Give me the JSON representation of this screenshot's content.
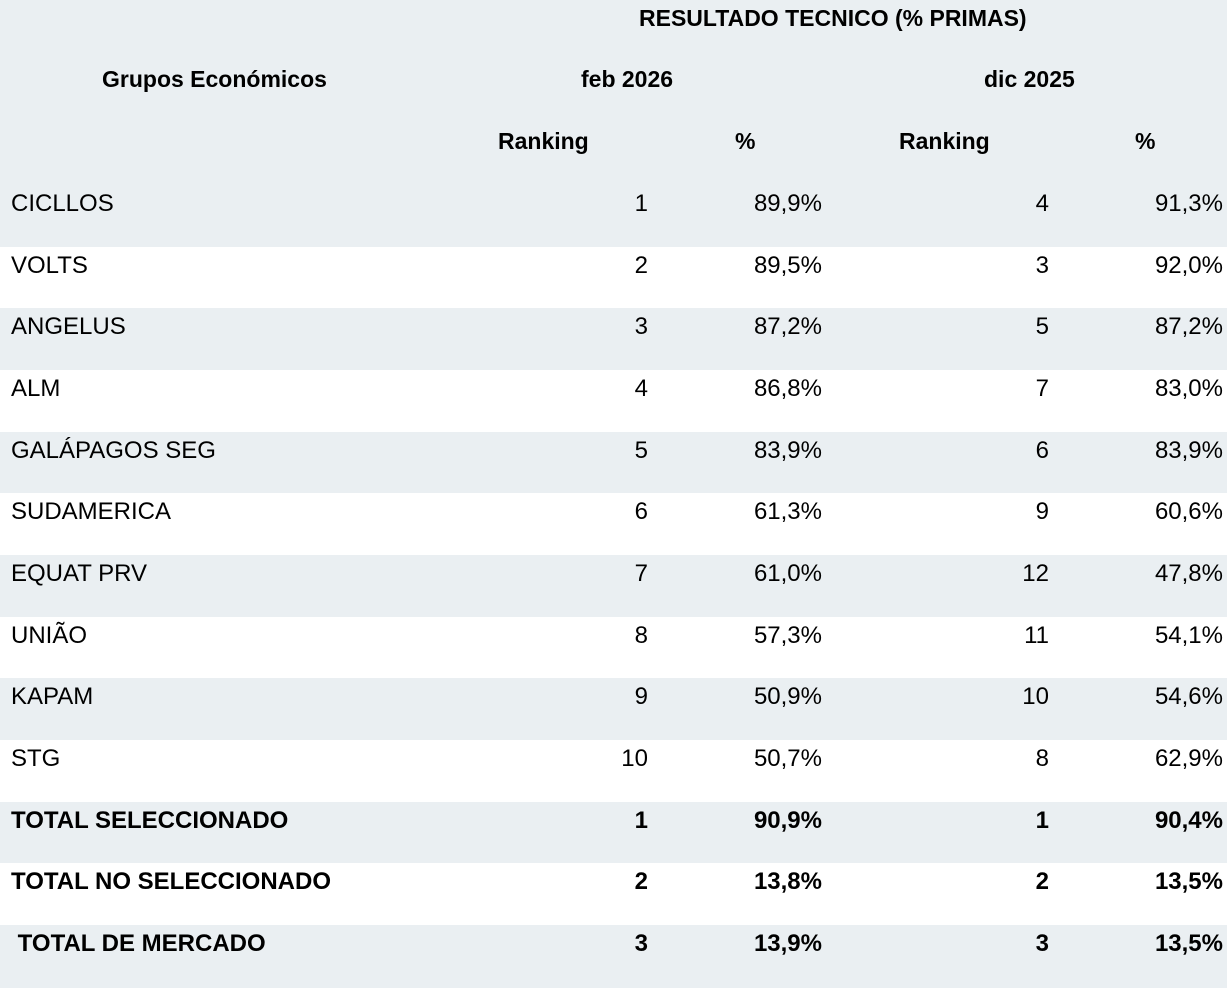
{
  "header": {
    "title": "RESULTADO TECNICO (% PRIMAS)",
    "group_label": "Grupos Económicos",
    "period1": "feb 2026",
    "period2": "dic 2025",
    "ranking1": "Ranking",
    "pct1": "%",
    "ranking2": "Ranking",
    "pct2": "%"
  },
  "rows": [
    {
      "name": "CICLLOS",
      "r1": "1",
      "p1": "89,9%",
      "r2": "4",
      "p2": "91,3%"
    },
    {
      "name": "VOLTS",
      "r1": "2",
      "p1": "89,5%",
      "r2": "3",
      "p2": "92,0%"
    },
    {
      "name": "ANGELUS",
      "r1": "3",
      "p1": "87,2%",
      "r2": "5",
      "p2": "87,2%"
    },
    {
      "name": "ALM",
      "r1": "4",
      "p1": "86,8%",
      "r2": "7",
      "p2": "83,0%"
    },
    {
      "name": "GALÁPAGOS SEG",
      "r1": "5",
      "p1": "83,9%",
      "r2": "6",
      "p2": "83,9%"
    },
    {
      "name": "SUDAMERICA",
      "r1": "6",
      "p1": "61,3%",
      "r2": "9",
      "p2": "60,6%"
    },
    {
      "name": "EQUAT PRV",
      "r1": "7",
      "p1": "61,0%",
      "r2": "12",
      "p2": "47,8%"
    },
    {
      "name": "UNIÃO",
      "r1": "8",
      "p1": "57,3%",
      "r2": "11",
      "p2": "54,1%"
    },
    {
      "name": "KAPAM",
      "r1": "9",
      "p1": "50,9%",
      "r2": "10",
      "p2": "54,6%"
    },
    {
      "name": "STG",
      "r1": "10",
      "p1": "50,7%",
      "r2": "8",
      "p2": "62,9%"
    }
  ],
  "totals": [
    {
      "name": "TOTAL SELECCIONADO",
      "r1": "1",
      "p1": "90,9%",
      "r2": "1",
      "p2": "90,4%"
    },
    {
      "name": "TOTAL NO SELECCIONADO",
      "r1": "2",
      "p1": "13,8%",
      "r2": "2",
      "p2": "13,5%"
    },
    {
      "name": " TOTAL DE MERCADO",
      "r1": "3",
      "p1": "13,9%",
      "r2": "3",
      "p2": "13,5%"
    }
  ],
  "colors": {
    "band": "#eaeff2",
    "white": "#ffffff",
    "text": "#000000"
  }
}
